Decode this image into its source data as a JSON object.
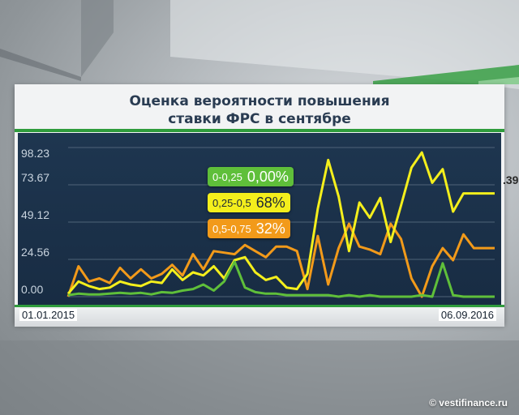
{
  "chart_data": {
    "type": "line",
    "title": "Оценка вероятности повышения\nставки ФРС в сентябре",
    "title_lines": [
      "Оценка вероятности повышения",
      "ставки ФРС в сентябре"
    ],
    "y_ticks": [
      "98.23",
      "73.67",
      "49.12",
      "24.56",
      "0.00"
    ],
    "ylim": [
      0,
      98.23
    ],
    "x_start_label": "01.01.2015",
    "x_end_label": "06.09.2016",
    "grid": true,
    "series": [
      {
        "name": "0-0,25",
        "color": "#5fbf3a",
        "values": [
          1,
          2,
          1.5,
          1.5,
          2,
          2.5,
          2,
          2.5,
          1.5,
          3,
          2.5,
          4,
          5,
          8,
          4,
          10,
          23,
          6,
          3,
          2,
          2,
          1,
          1,
          1,
          1,
          1,
          0,
          1,
          0,
          1,
          0,
          0,
          0,
          0,
          1,
          0,
          22,
          1,
          0,
          0,
          0,
          0
        ]
      },
      {
        "name": "0,25-0,5",
        "color": "#f4ef1c",
        "values": [
          2,
          10,
          7,
          5,
          6,
          10,
          8,
          7,
          10,
          9,
          18,
          11,
          16,
          14,
          20,
          12,
          24,
          26,
          16,
          11,
          13,
          6,
          5,
          15,
          58,
          90,
          66,
          30,
          62,
          52,
          65,
          36,
          60,
          85,
          95,
          75,
          84,
          56,
          68,
          68,
          68,
          68
        ]
      },
      {
        "name": "0,5-0,75",
        "color": "#f29a1a",
        "values": [
          0,
          20,
          10,
          12,
          9,
          19,
          12,
          18,
          12,
          15,
          21,
          14,
          28,
          18,
          30,
          29,
          28,
          34,
          30,
          26,
          33,
          33,
          30,
          5,
          40,
          8,
          32,
          48,
          33,
          31,
          28,
          48,
          38,
          12,
          0,
          20,
          32,
          24,
          41,
          32,
          32,
          32
        ]
      }
    ],
    "legend": [
      {
        "range": "0-0,25",
        "value": "0,00%"
      },
      {
        "range": "0,25-0,5",
        "value": "68%"
      },
      {
        "range": "0,5-0,75",
        "value": "32%"
      }
    ]
  },
  "credit": "© vestifinance.ru",
  "side_text": ".39"
}
